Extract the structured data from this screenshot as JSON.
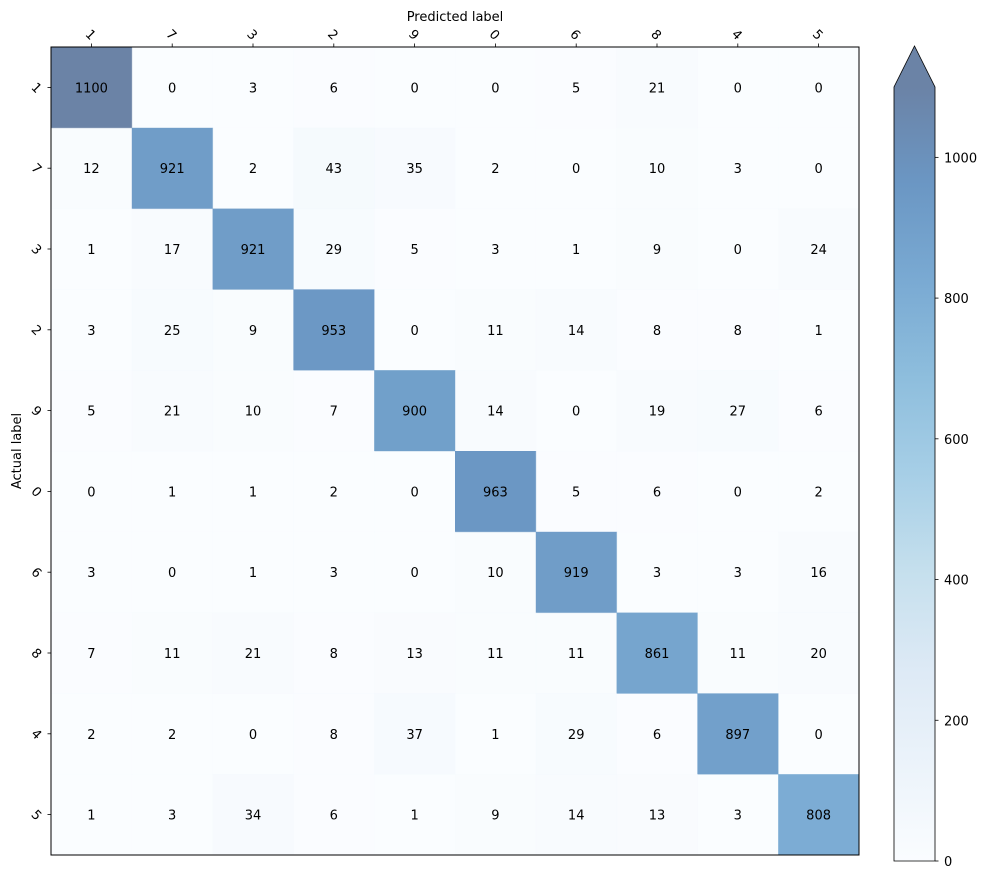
{
  "chart_data": {
    "type": "heatmap",
    "title": "",
    "xlabel": "Predicted label",
    "ylabel": "Actual label",
    "x_categories": [
      "1",
      "7",
      "3",
      "2",
      "9",
      "0",
      "6",
      "8",
      "4",
      "5"
    ],
    "y_categories": [
      "1",
      "7",
      "3",
      "2",
      "9",
      "0",
      "6",
      "8",
      "4",
      "5"
    ],
    "values": [
      [
        1100,
        0,
        3,
        6,
        0,
        0,
        5,
        21,
        0,
        0
      ],
      [
        12,
        921,
        2,
        43,
        35,
        2,
        0,
        10,
        3,
        0
      ],
      [
        1,
        17,
        921,
        29,
        5,
        3,
        1,
        9,
        0,
        24
      ],
      [
        3,
        25,
        9,
        953,
        0,
        11,
        14,
        8,
        8,
        1
      ],
      [
        5,
        21,
        10,
        7,
        900,
        14,
        0,
        19,
        27,
        6
      ],
      [
        0,
        1,
        1,
        2,
        0,
        963,
        5,
        6,
        0,
        2
      ],
      [
        3,
        0,
        1,
        3,
        0,
        10,
        919,
        3,
        3,
        16
      ],
      [
        7,
        11,
        21,
        8,
        13,
        11,
        11,
        861,
        11,
        20
      ],
      [
        2,
        2,
        0,
        8,
        37,
        1,
        29,
        6,
        897,
        0
      ],
      [
        1,
        3,
        34,
        6,
        1,
        9,
        14,
        13,
        3,
        808
      ]
    ],
    "colormap": "Blues",
    "cell_alpha": 0.6,
    "color_range": [
      0,
      1100
    ],
    "colorbar": {
      "ticks": [
        "0",
        "200",
        "400",
        "600",
        "800",
        "1000"
      ],
      "extend": "max"
    },
    "x_axis_position": "top",
    "tick_label_rotation": 45,
    "grid": false
  }
}
